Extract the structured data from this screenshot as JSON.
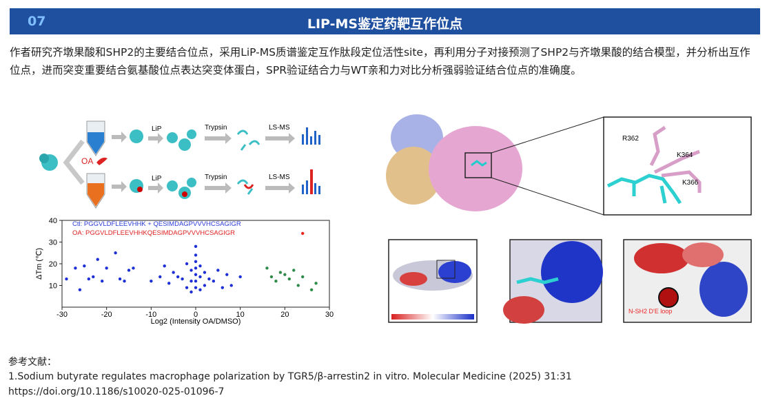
{
  "header": {
    "number": "07",
    "title": "LIP-MS鉴定药靶互作位点"
  },
  "paragraph": "作者研究齐墩果酸和SHP2的主要结合位点，采用LiP-MS质谱鉴定互作肽段定位活性site，再利用分子对接预测了SHP2与齐墩果酸的结合模型，并分析出互作位点，进而突变重要结合氨基酸位点表达突变体蛋白，SPR验证结合力与WT亲和力对比分析强弱验证结合位点的准确度。",
  "figure": {
    "workflow": {
      "treatment": "OA",
      "step1": "LiP",
      "step2": "Trypsin",
      "step3": "LS-MS"
    },
    "scatter": {
      "legend_ctl": "Ctl: PGGVLDFLEEVHHK + QESIMDAGPVVVHCSAGIGR",
      "legend_oa": "OA: PGGVLDFLEEVHHKQESIMDAGPVVVHCSAGIGR",
      "x_label": "Log2 (Intensity OA/DMSO)",
      "y_label": "ΔTm (℃)",
      "xlim": [
        -30,
        30
      ],
      "ylim": [
        0,
        40
      ],
      "xticks": [
        -30,
        -20,
        -10,
        0,
        10,
        20,
        30
      ],
      "yticks": [
        10,
        20,
        30,
        40
      ],
      "series": [
        {
          "color": "#1f2fd6",
          "x": [
            -27,
            -26,
            -25,
            -24,
            -23,
            -22,
            -21,
            -20,
            -18,
            -17,
            -16,
            -15,
            -14,
            -29,
            -10,
            -8,
            -6,
            -5,
            -4,
            -3,
            -2,
            -2,
            -1,
            -1,
            -1,
            0,
            0,
            0,
            0,
            0,
            0,
            0,
            1,
            1,
            1,
            2,
            2,
            3,
            4,
            5,
            6,
            7,
            8,
            10,
            -7
          ],
          "y": [
            18,
            8,
            19,
            13,
            14,
            22,
            12,
            18,
            25,
            13,
            12,
            17,
            18,
            13,
            12,
            14,
            11,
            16,
            14,
            13,
            20,
            9,
            17,
            12,
            7,
            28,
            24,
            21,
            18,
            15,
            12,
            9,
            19,
            14,
            8,
            16,
            10,
            13,
            12,
            17,
            9,
            15,
            10,
            14,
            19
          ]
        },
        {
          "color": "#2e8b4a",
          "x": [
            16,
            17,
            18,
            19,
            20,
            21,
            22,
            23,
            24,
            26,
            27
          ],
          "y": [
            18,
            14,
            12,
            16,
            15,
            13,
            17,
            10,
            14,
            8,
            11
          ]
        },
        {
          "color": "#e8261e",
          "x": [
            24
          ],
          "y": [
            34
          ]
        }
      ]
    },
    "residues": [
      "R362",
      "K364",
      "K366"
    ],
    "loop_label": "N-SH2 D'E loop"
  },
  "references": {
    "heading": "参考文献：",
    "items": [
      "1.Sodium butyrate regulates macrophage polarization by TGR5/β-arrestin2 in vitro. Molecular Medicine (2025) 31:31",
      "https://doi.org/10.1186/s10020-025-01096-7"
    ]
  }
}
